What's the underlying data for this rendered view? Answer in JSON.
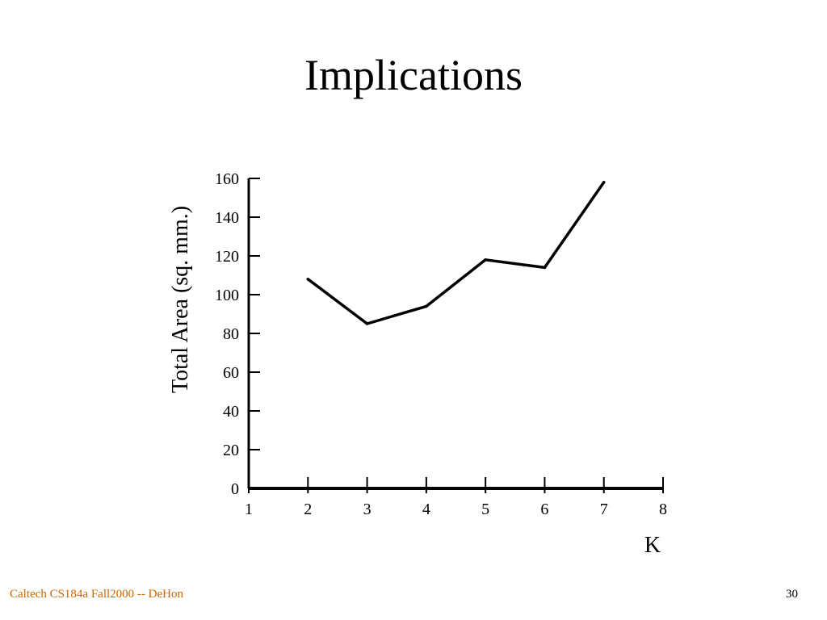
{
  "slide": {
    "title": "Implications",
    "footer_left": "Caltech CS184a Fall2000 -- DeHon",
    "page_number": "30",
    "footer_color": "#cc6600"
  },
  "chart_data": {
    "type": "line",
    "title": "",
    "xlabel": "K",
    "ylabel": "Total Area (sq. mm.)",
    "xlim": [
      1,
      8
    ],
    "ylim": [
      0,
      160
    ],
    "x_ticks": [
      1,
      2,
      3,
      4,
      5,
      6,
      7,
      8
    ],
    "y_ticks": [
      0,
      20,
      40,
      60,
      80,
      100,
      120,
      140,
      160
    ],
    "grid": false,
    "legend": "none",
    "series": [
      {
        "x": [
          2,
          3,
          4,
          5,
          6,
          7
        ],
        "values": [
          108,
          85,
          94,
          118,
          114,
          158
        ],
        "color": "#000000"
      }
    ]
  }
}
